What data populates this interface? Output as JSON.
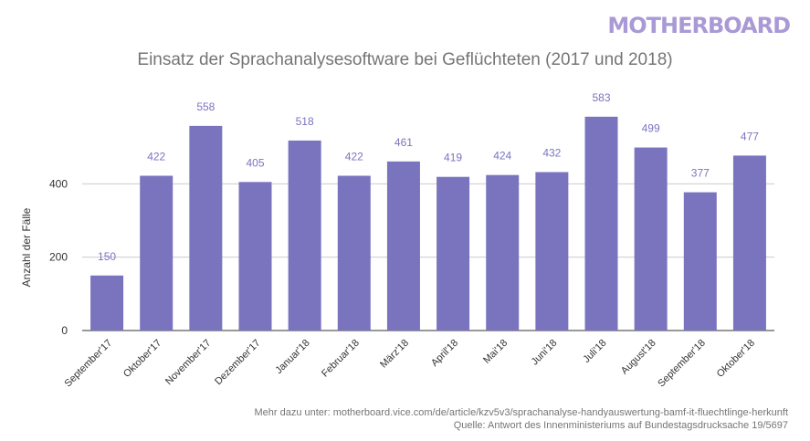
{
  "brand": {
    "logo_text": "MOTHERBOARD"
  },
  "chart_data": {
    "type": "bar",
    "title": "Einsatz der Sprachanalysesoftware bei Geflüchteten (2017 und 2018)",
    "xlabel": "",
    "ylabel": "Anzahl der Fälle",
    "categories": [
      "September'17",
      "Oktober'17",
      "November'17",
      "Dezember'17",
      "Januar'18",
      "Februar'18",
      "März'18",
      "April'18",
      "Mai'18",
      "Juni'18",
      "Juli'18",
      "August'18",
      "September'18",
      "Oktober'18"
    ],
    "values": [
      150,
      422,
      558,
      405,
      518,
      422,
      461,
      419,
      424,
      432,
      583,
      499,
      377,
      477
    ],
    "ylim": [
      0,
      600
    ],
    "yticks": [
      0,
      200,
      400
    ],
    "grid": true,
    "bar_color": "#7a74bf",
    "label_color": "#7a74bf"
  },
  "footer": {
    "line1": "Mehr dazu unter: motherboard.vice.com/de/article/kzv5v3/sprachanalyse-handyauswertung-bamf-it-fluechtlinge-herkunft",
    "line2": "Quelle: Antwort des Innenministeriums auf Bundestagsdrucksache 19/5697"
  }
}
